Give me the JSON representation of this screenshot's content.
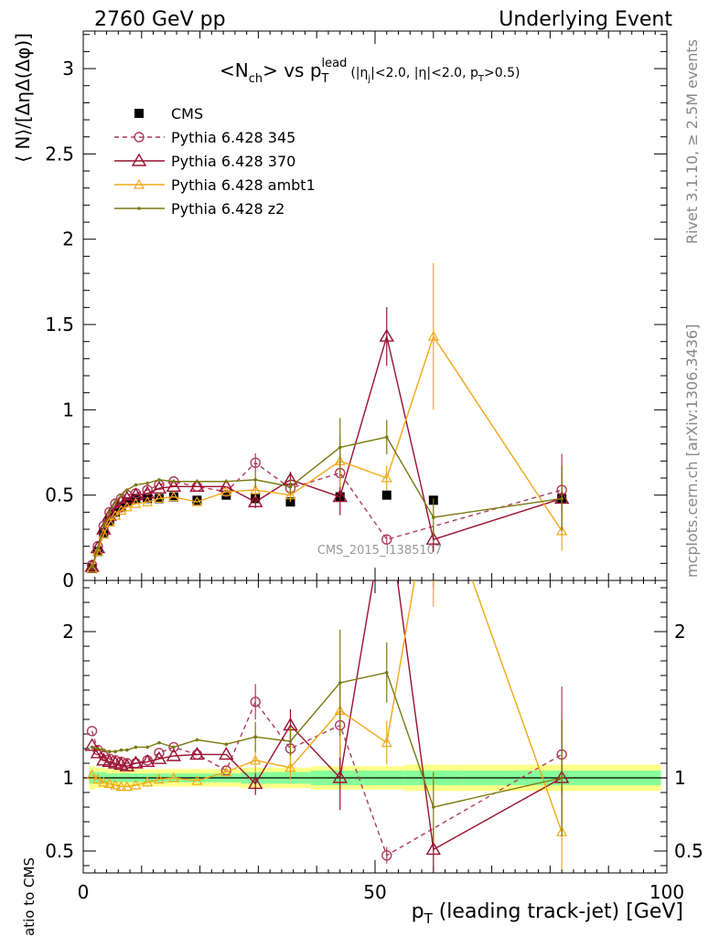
{
  "header": {
    "left": "2760 GeV pp",
    "right": "Underlying Event",
    "plot_title": "<N",
    "plot_title_sub1": "ch",
    "plot_title_mid": "> vs p",
    "plot_title_sub2": "T",
    "plot_title_sup": "lead",
    "plot_title_cuts": "(|η",
    "plot_title_sub3": "j",
    "plot_title_cuts2": "|<2.0, |η|<2.0, p",
    "plot_title_sub4": "T",
    "plot_title_cuts3": ">0.5)"
  },
  "side_labels": {
    "rivet": "Rivet 3.1.10, ≥ 2.5M events",
    "mcplots": "mcplots.cern.ch [arXiv:1306.3436]"
  },
  "watermark": "CMS_2015_I1385107",
  "colors": {
    "cms": "#000000",
    "p345": "#b03a5a",
    "p370": "#9a1030",
    "ambt1": "#f0a818",
    "z2": "#7a7a10",
    "band_outer": "#ffff88",
    "band_inner": "#88ff99"
  },
  "chart_data": [
    {
      "type": "scatter",
      "panel": "main",
      "ylabel": "⟨ N⟩/[ΔηΔ(Δφ)]",
      "xlim": [
        0,
        100
      ],
      "ylim": [
        0,
        3.22
      ],
      "y_ticks": [
        "0",
        "0.5",
        "1",
        "1.5",
        "2",
        "2.5",
        "3"
      ],
      "x": [
        1.5,
        2.5,
        3.5,
        4.5,
        5.5,
        6.5,
        7.5,
        9,
        11,
        13,
        15.5,
        19.5,
        24.5,
        29.5,
        35.5,
        44,
        52,
        60,
        82
      ],
      "series": [
        {
          "name": "CMS",
          "marker": "square",
          "values": [
            0.07,
            0.17,
            0.28,
            0.35,
            0.4,
            0.43,
            0.46,
            0.48,
            0.48,
            0.48,
            0.49,
            0.47,
            0.5,
            0.48,
            0.46,
            0.49,
            0.5,
            0.47,
            0.48
          ]
        },
        {
          "name": "Pythia 6.428 345",
          "marker": "circle",
          "style": "dashed",
          "values": [
            0.09,
            0.2,
            0.32,
            0.4,
            0.45,
            0.48,
            0.5,
            0.51,
            0.53,
            0.56,
            0.58,
            0.55,
            0.52,
            0.69,
            0.54,
            0.63,
            0.24,
            null,
            0.53
          ]
        },
        {
          "name": "Pythia 6.428 370",
          "marker": "triangle",
          "style": "solid",
          "values": [
            0.08,
            0.19,
            0.3,
            0.38,
            0.43,
            0.46,
            0.48,
            0.5,
            0.51,
            0.54,
            0.55,
            0.55,
            0.55,
            0.46,
            0.59,
            0.49,
            1.43,
            0.24,
            0.48
          ]
        },
        {
          "name": "Pythia 6.428 ambt1",
          "marker": "triangle-small",
          "style": "solid",
          "values": [
            0.07,
            0.17,
            0.27,
            0.34,
            0.38,
            0.41,
            0.43,
            0.45,
            0.46,
            0.48,
            0.49,
            0.46,
            0.52,
            0.53,
            0.5,
            0.7,
            0.6,
            1.43,
            0.29
          ]
        },
        {
          "name": "Pythia 6.428 z2",
          "marker": "dot",
          "style": "solid",
          "values": [
            0.08,
            0.19,
            0.32,
            0.4,
            0.46,
            0.5,
            0.53,
            0.56,
            0.57,
            0.59,
            0.58,
            0.58,
            0.58,
            0.59,
            0.55,
            0.78,
            0.84,
            0.37,
            0.48
          ]
        }
      ]
    },
    {
      "type": "line",
      "panel": "ratio",
      "ylabel": "Ratio to CMS",
      "xlabel": "p_T (leading track-jet) [GeV]",
      "xlabel_main": "p",
      "xlabel_sub": "T",
      "xlabel_rest": " (leading track-jet) [GeV]",
      "xlim": [
        0,
        100
      ],
      "ylim": [
        0.35,
        2.35
      ],
      "x_ticks": [
        "0",
        "50",
        "100"
      ],
      "y_ticks": [
        "0.5",
        "1",
        "2"
      ],
      "x": [
        1.5,
        2.5,
        3.5,
        4.5,
        5.5,
        6.5,
        7.5,
        9,
        11,
        13,
        15.5,
        19.5,
        24.5,
        29.5,
        35.5,
        44,
        52,
        60,
        82
      ],
      "series": [
        {
          "name": "Pythia 6.428 345",
          "values": [
            1.32,
            1.19,
            1.15,
            1.13,
            1.12,
            1.11,
            1.1,
            1.1,
            1.12,
            1.17,
            1.21,
            1.16,
            1.05,
            1.52,
            1.2,
            1.36,
            0.47,
            null,
            1.16
          ]
        },
        {
          "name": "Pythia 6.428 370",
          "values": [
            1.22,
            1.17,
            1.12,
            1.11,
            1.1,
            1.09,
            1.08,
            1.1,
            1.11,
            1.13,
            1.15,
            1.16,
            1.16,
            0.96,
            1.36,
            1.0,
            2.9,
            0.51,
            1.0
          ]
        },
        {
          "name": "Pythia 6.428 ambt1",
          "values": [
            1.02,
            0.99,
            0.97,
            0.96,
            0.95,
            0.94,
            0.94,
            0.95,
            0.97,
            0.99,
            1.0,
            0.98,
            1.04,
            1.12,
            1.07,
            1.46,
            1.24,
            3.1,
            0.63
          ]
        },
        {
          "name": "Pythia 6.428 z2",
          "values": [
            1.21,
            1.2,
            1.19,
            1.18,
            1.18,
            1.19,
            1.19,
            1.21,
            1.21,
            1.24,
            1.21,
            1.26,
            1.23,
            1.28,
            1.25,
            1.65,
            1.72,
            0.8,
            1.0
          ]
        }
      ]
    }
  ]
}
